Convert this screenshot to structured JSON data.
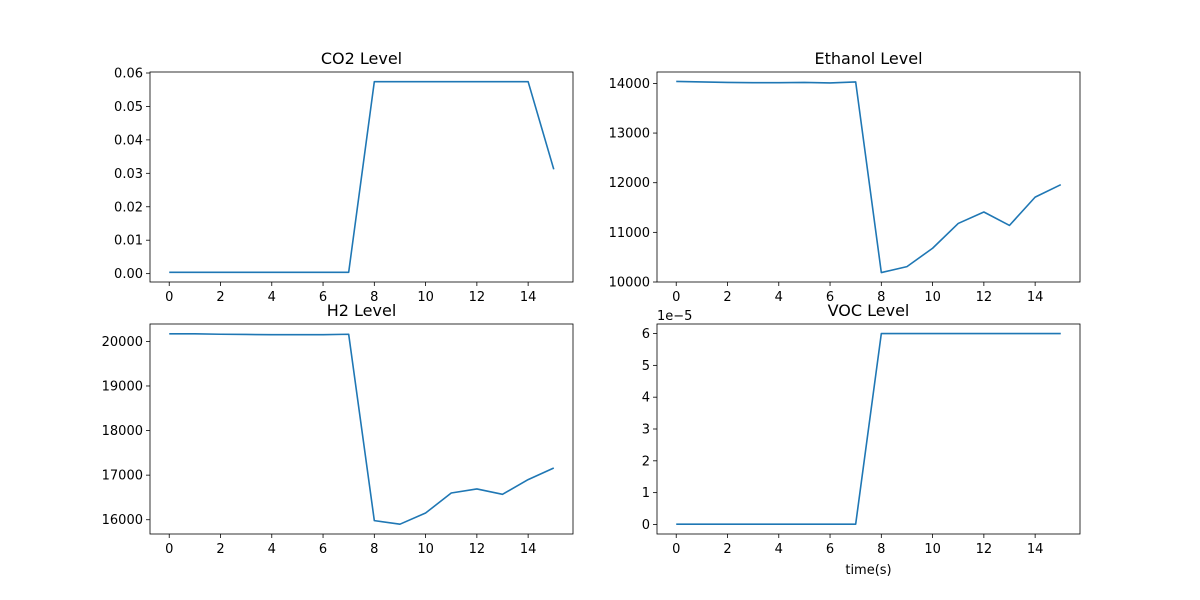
{
  "line_color": "#1f77b4",
  "chart_data": [
    {
      "type": "line",
      "title": "CO2 Level",
      "xlabel": "",
      "ylabel": "",
      "x": [
        0,
        1,
        2,
        3,
        4,
        5,
        6,
        7,
        8,
        9,
        10,
        11,
        12,
        13,
        14,
        15
      ],
      "series": [
        {
          "values": [
            0.0004,
            0.0004,
            0.0004,
            0.0004,
            0.0004,
            0.0004,
            0.0004,
            0.0004,
            0.0574,
            0.0574,
            0.0574,
            0.0574,
            0.0574,
            0.0574,
            0.0574,
            0.0312
          ]
        }
      ],
      "xlim": [
        -0.75,
        15.75
      ],
      "ylim": [
        -0.0025,
        0.0603
      ],
      "xticks": [
        0,
        2,
        4,
        6,
        8,
        10,
        12,
        14
      ],
      "xtick_labels": [
        "0",
        "2",
        "4",
        "6",
        "8",
        "10",
        "12",
        "14"
      ],
      "yticks": [
        0,
        0.01,
        0.02,
        0.03,
        0.04,
        0.05,
        0.06
      ],
      "ytick_labels": [
        "0.00",
        "0.01",
        "0.02",
        "0.03",
        "0.04",
        "0.05",
        "0.06"
      ],
      "offset_text": "",
      "grid": false
    },
    {
      "type": "line",
      "title": "Ethanol Level",
      "xlabel": "",
      "ylabel": "",
      "x": [
        0,
        1,
        2,
        3,
        4,
        5,
        6,
        7,
        8,
        9,
        10,
        11,
        12,
        13,
        14,
        15
      ],
      "series": [
        {
          "values": [
            14040,
            14030,
            14020,
            14015,
            14015,
            14020,
            14010,
            14030,
            10190,
            10310,
            10680,
            11180,
            11410,
            11140,
            11710,
            11960
          ]
        }
      ],
      "xlim": [
        -0.75,
        15.75
      ],
      "ylim": [
        10000,
        14230
      ],
      "xticks": [
        0,
        2,
        4,
        6,
        8,
        10,
        12,
        14
      ],
      "xtick_labels": [
        "0",
        "2",
        "4",
        "6",
        "8",
        "10",
        "12",
        "14"
      ],
      "yticks": [
        10000,
        11000,
        12000,
        13000,
        14000
      ],
      "ytick_labels": [
        "10000",
        "11000",
        "12000",
        "13000",
        "14000"
      ],
      "offset_text": "",
      "grid": false
    },
    {
      "type": "line",
      "title": "H2 Level",
      "xlabel": "",
      "ylabel": "",
      "x": [
        0,
        1,
        2,
        3,
        4,
        5,
        6,
        7,
        8,
        9,
        10,
        11,
        12,
        13,
        14,
        15
      ],
      "series": [
        {
          "values": [
            20170,
            20170,
            20160,
            20155,
            20150,
            20150,
            20150,
            20160,
            15980,
            15900,
            16150,
            16600,
            16690,
            16570,
            16900,
            17160
          ]
        }
      ],
      "xlim": [
        -0.75,
        15.75
      ],
      "ylim": [
        15680,
        20390
      ],
      "xticks": [
        0,
        2,
        4,
        6,
        8,
        10,
        12,
        14
      ],
      "xtick_labels": [
        "0",
        "2",
        "4",
        "6",
        "8",
        "10",
        "12",
        "14"
      ],
      "yticks": [
        16000,
        17000,
        18000,
        19000,
        20000
      ],
      "ytick_labels": [
        "16000",
        "17000",
        "18000",
        "19000",
        "20000"
      ],
      "offset_text": "",
      "grid": false
    },
    {
      "type": "line",
      "title": "VOC Level",
      "xlabel": "time(s)",
      "ylabel": "",
      "x": [
        0,
        1,
        2,
        3,
        4,
        5,
        6,
        7,
        8,
        9,
        10,
        11,
        12,
        13,
        14,
        15
      ],
      "series": [
        {
          "values": [
            1e-07,
            1e-07,
            1e-07,
            1e-07,
            1e-07,
            1e-07,
            1e-07,
            1e-07,
            6e-05,
            6e-05,
            6e-05,
            6e-05,
            6e-05,
            6e-05,
            6e-05,
            6e-05
          ]
        }
      ],
      "xlim": [
        -0.75,
        15.75
      ],
      "ylim": [
        -3e-06,
        6.3e-05
      ],
      "xticks": [
        0,
        2,
        4,
        6,
        8,
        10,
        12,
        14
      ],
      "xtick_labels": [
        "0",
        "2",
        "4",
        "6",
        "8",
        "10",
        "12",
        "14"
      ],
      "yticks": [
        0,
        1e-05,
        2e-05,
        3e-05,
        4e-05,
        5e-05,
        6e-05
      ],
      "ytick_labels": [
        "0",
        "1",
        "2",
        "3",
        "4",
        "5",
        "6"
      ],
      "offset_text": "1e−5",
      "grid": false
    }
  ]
}
